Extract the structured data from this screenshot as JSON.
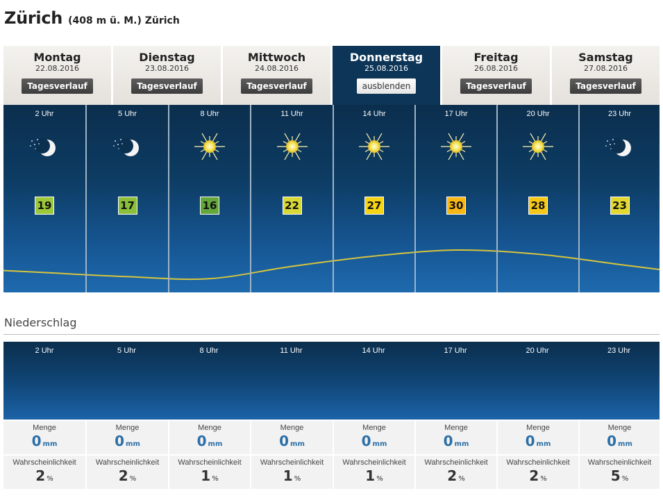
{
  "location": {
    "city": "Zürich",
    "subtitle": "(408 m ü. M.) Zürich"
  },
  "days": [
    {
      "name": "Montag",
      "date": "22.08.2016",
      "button": "Tagesverlauf",
      "active": false
    },
    {
      "name": "Dienstag",
      "date": "23.08.2016",
      "button": "Tagesverlauf",
      "active": false
    },
    {
      "name": "Mittwoch",
      "date": "24.08.2016",
      "button": "Tagesverlauf",
      "active": false
    },
    {
      "name": "Donnerstag",
      "date": "25.08.2016",
      "button": "ausblenden",
      "active": true
    },
    {
      "name": "Freitag",
      "date": "26.08.2016",
      "button": "Tagesverlauf",
      "active": false
    },
    {
      "name": "Samstag",
      "date": "27.08.2016",
      "button": "Tagesverlauf",
      "active": false
    }
  ],
  "hourly": [
    {
      "hour": "2 Uhr",
      "icon": "moon-stars-icon",
      "temp": "19",
      "color": "#9cc93a"
    },
    {
      "hour": "5 Uhr",
      "icon": "moon-stars-icon",
      "temp": "17",
      "color": "#8bbf3a"
    },
    {
      "hour": "8 Uhr",
      "icon": "sun-icon",
      "temp": "16",
      "color": "#64a83c"
    },
    {
      "hour": "11 Uhr",
      "icon": "sun-icon",
      "temp": "22",
      "color": "#d8d936"
    },
    {
      "hour": "14 Uhr",
      "icon": "sun-icon",
      "temp": "27",
      "color": "#f5d415"
    },
    {
      "hour": "17 Uhr",
      "icon": "sun-icon",
      "temp": "30",
      "color": "#f7b816"
    },
    {
      "hour": "20 Uhr",
      "icon": "sun-icon",
      "temp": "28",
      "color": "#f5c817"
    },
    {
      "hour": "23 Uhr",
      "icon": "moon-stars-icon",
      "temp": "23",
      "color": "#e2d82f"
    }
  ],
  "precipitation": {
    "title": "Niederschlag",
    "hours": [
      "2 Uhr",
      "5 Uhr",
      "8 Uhr",
      "11 Uhr",
      "14 Uhr",
      "17 Uhr",
      "20 Uhr",
      "23 Uhr"
    ],
    "amount_label": "Menge",
    "amount_unit": "mm",
    "probability_label": "Wahrscheinlichkeit",
    "probability_unit": "%",
    "amounts": [
      "0",
      "0",
      "0",
      "0",
      "0",
      "0",
      "0",
      "0"
    ],
    "probabilities": [
      "2",
      "2",
      "1",
      "1",
      "1",
      "2",
      "2",
      "5"
    ]
  },
  "colors": {
    "curve": "#d7c53c",
    "active_day": "#0c3557"
  }
}
